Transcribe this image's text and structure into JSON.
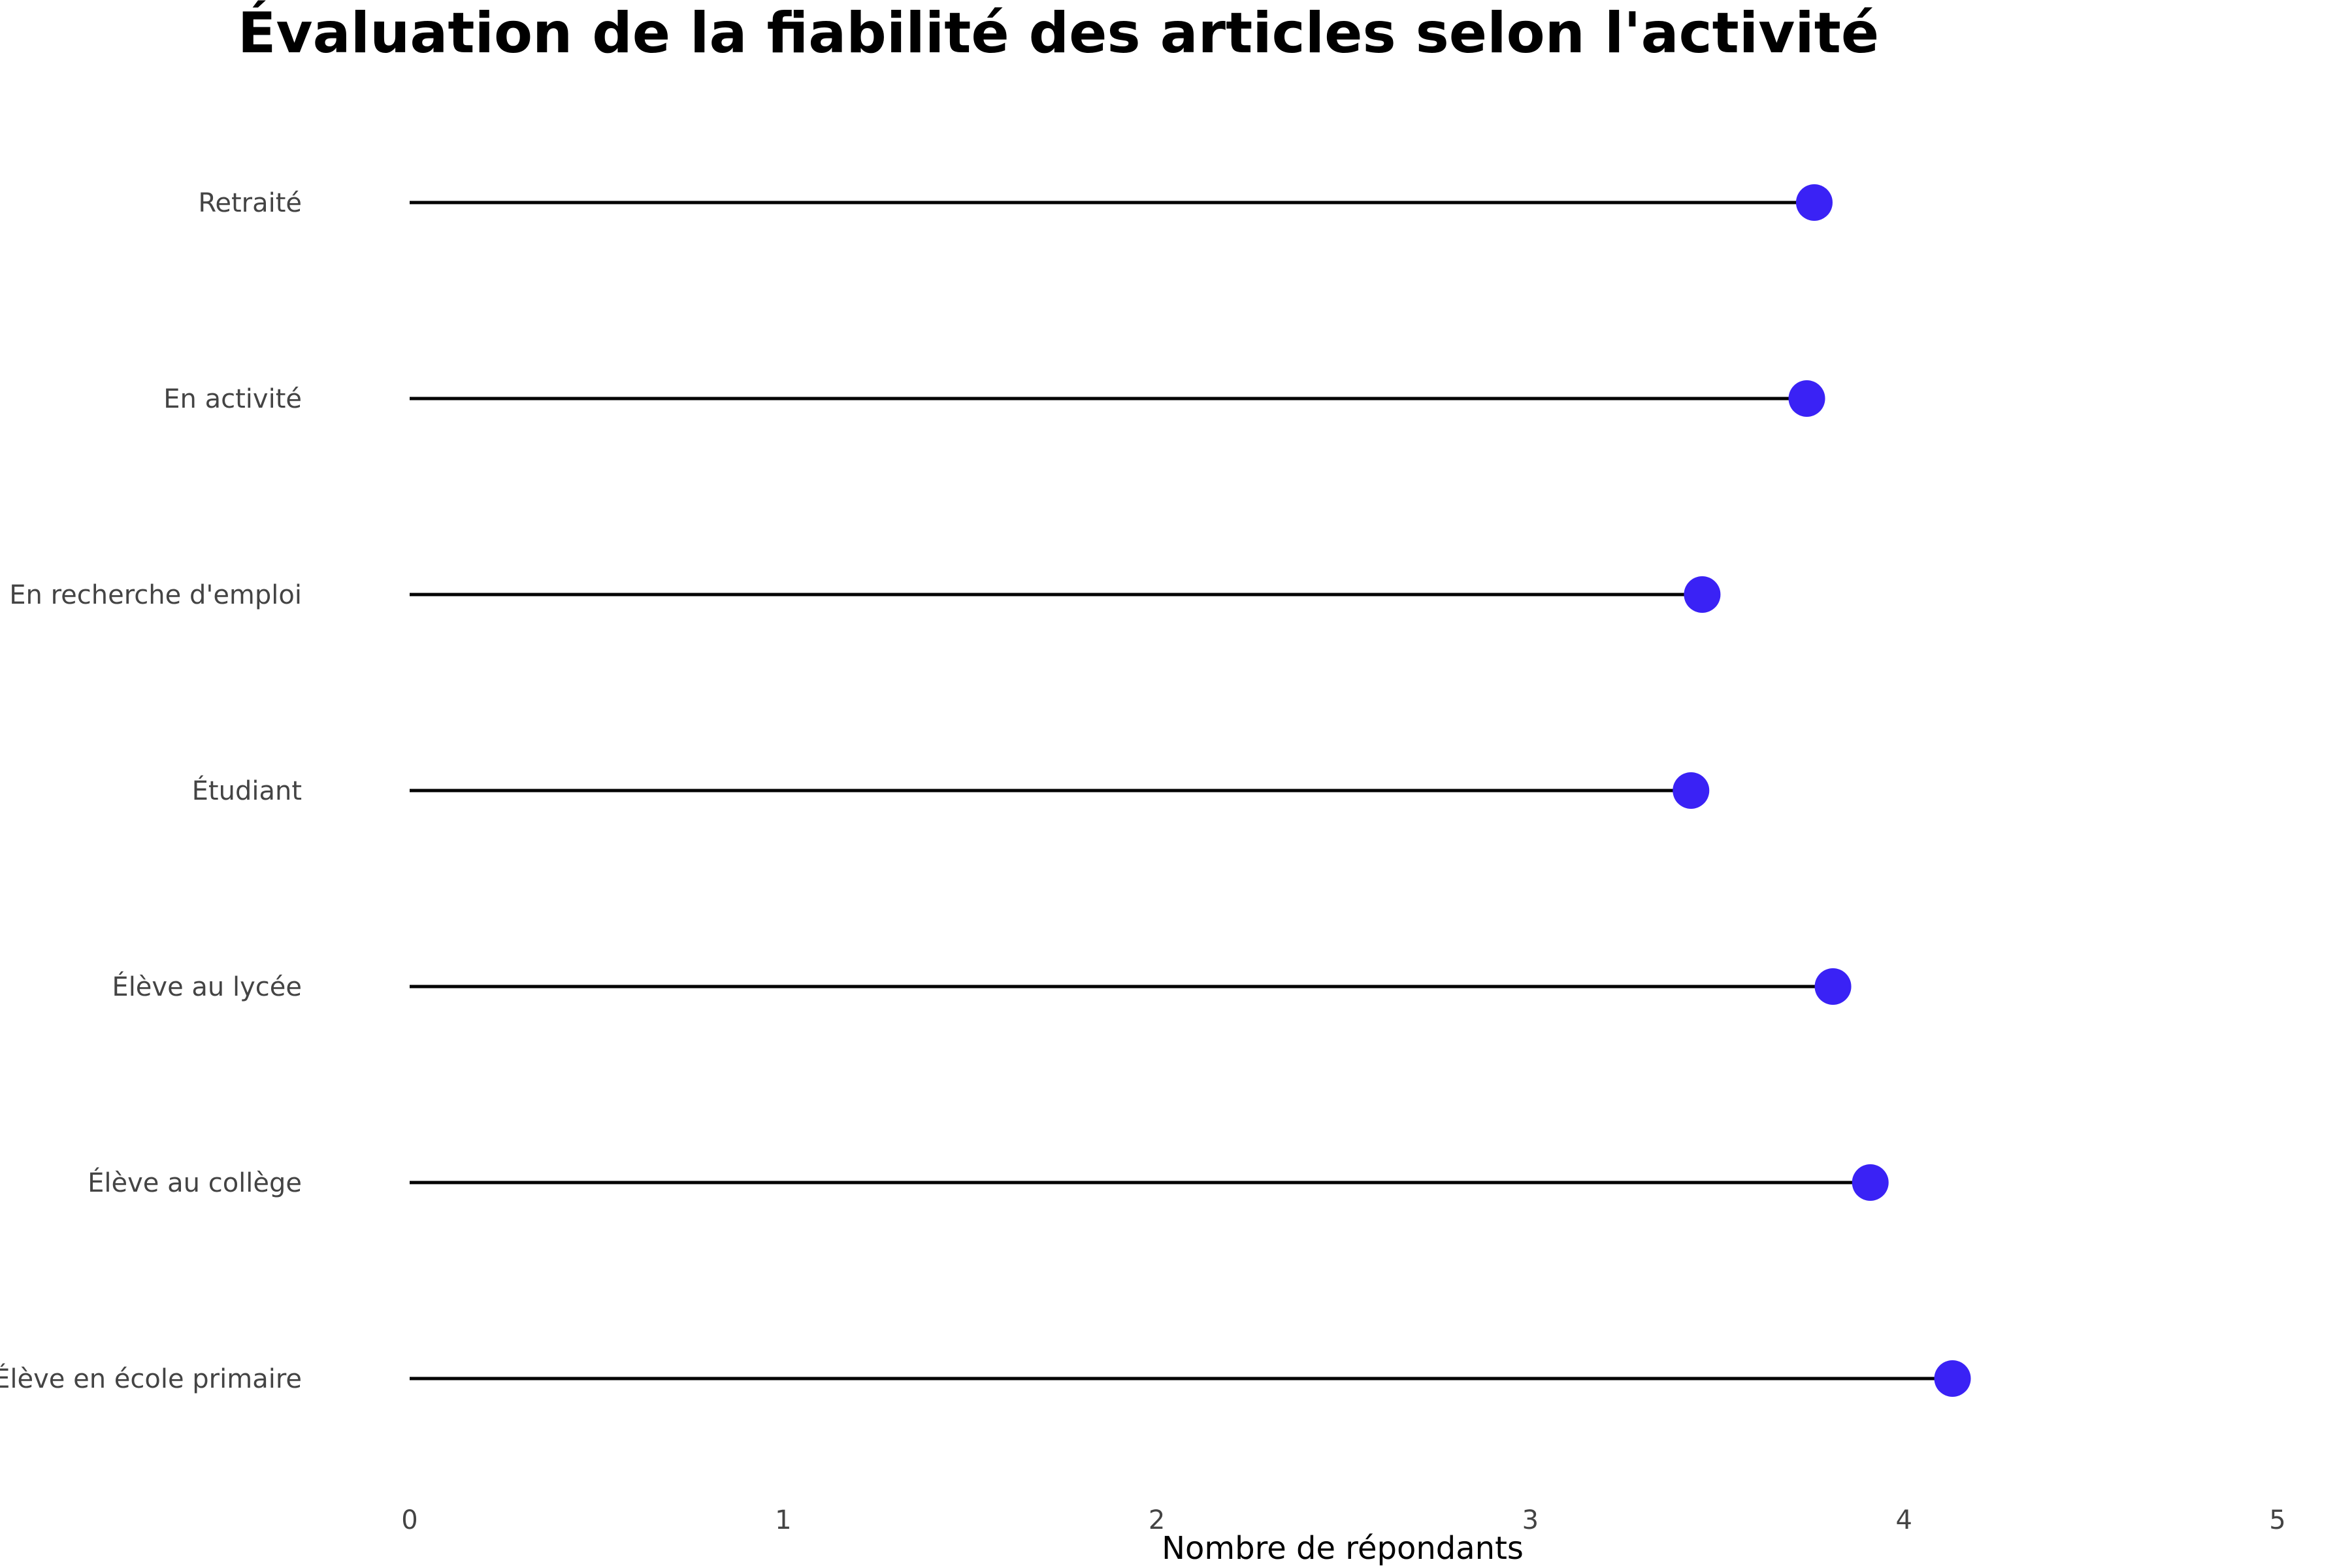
{
  "chart_data": {
    "type": "lollipop",
    "title": "Évaluation de la fiabilité des articles selon l'activité",
    "xlabel": "Nombre de répondants",
    "ylabel": "",
    "xlim": [
      0,
      5
    ],
    "xticks": [
      "0",
      "1",
      "2",
      "3",
      "4",
      "5"
    ],
    "grid": false,
    "categories": [
      "Retraité",
      "En activité",
      "En recherche d'emploi",
      "Étudiant",
      "Élève au lycée",
      "Élève au collège",
      "Élève en école primaire"
    ],
    "values": [
      3.76,
      3.74,
      3.46,
      3.43,
      3.81,
      3.91,
      4.13
    ],
    "colors": {
      "point": "#3A22F5",
      "stem": "#000000"
    }
  }
}
